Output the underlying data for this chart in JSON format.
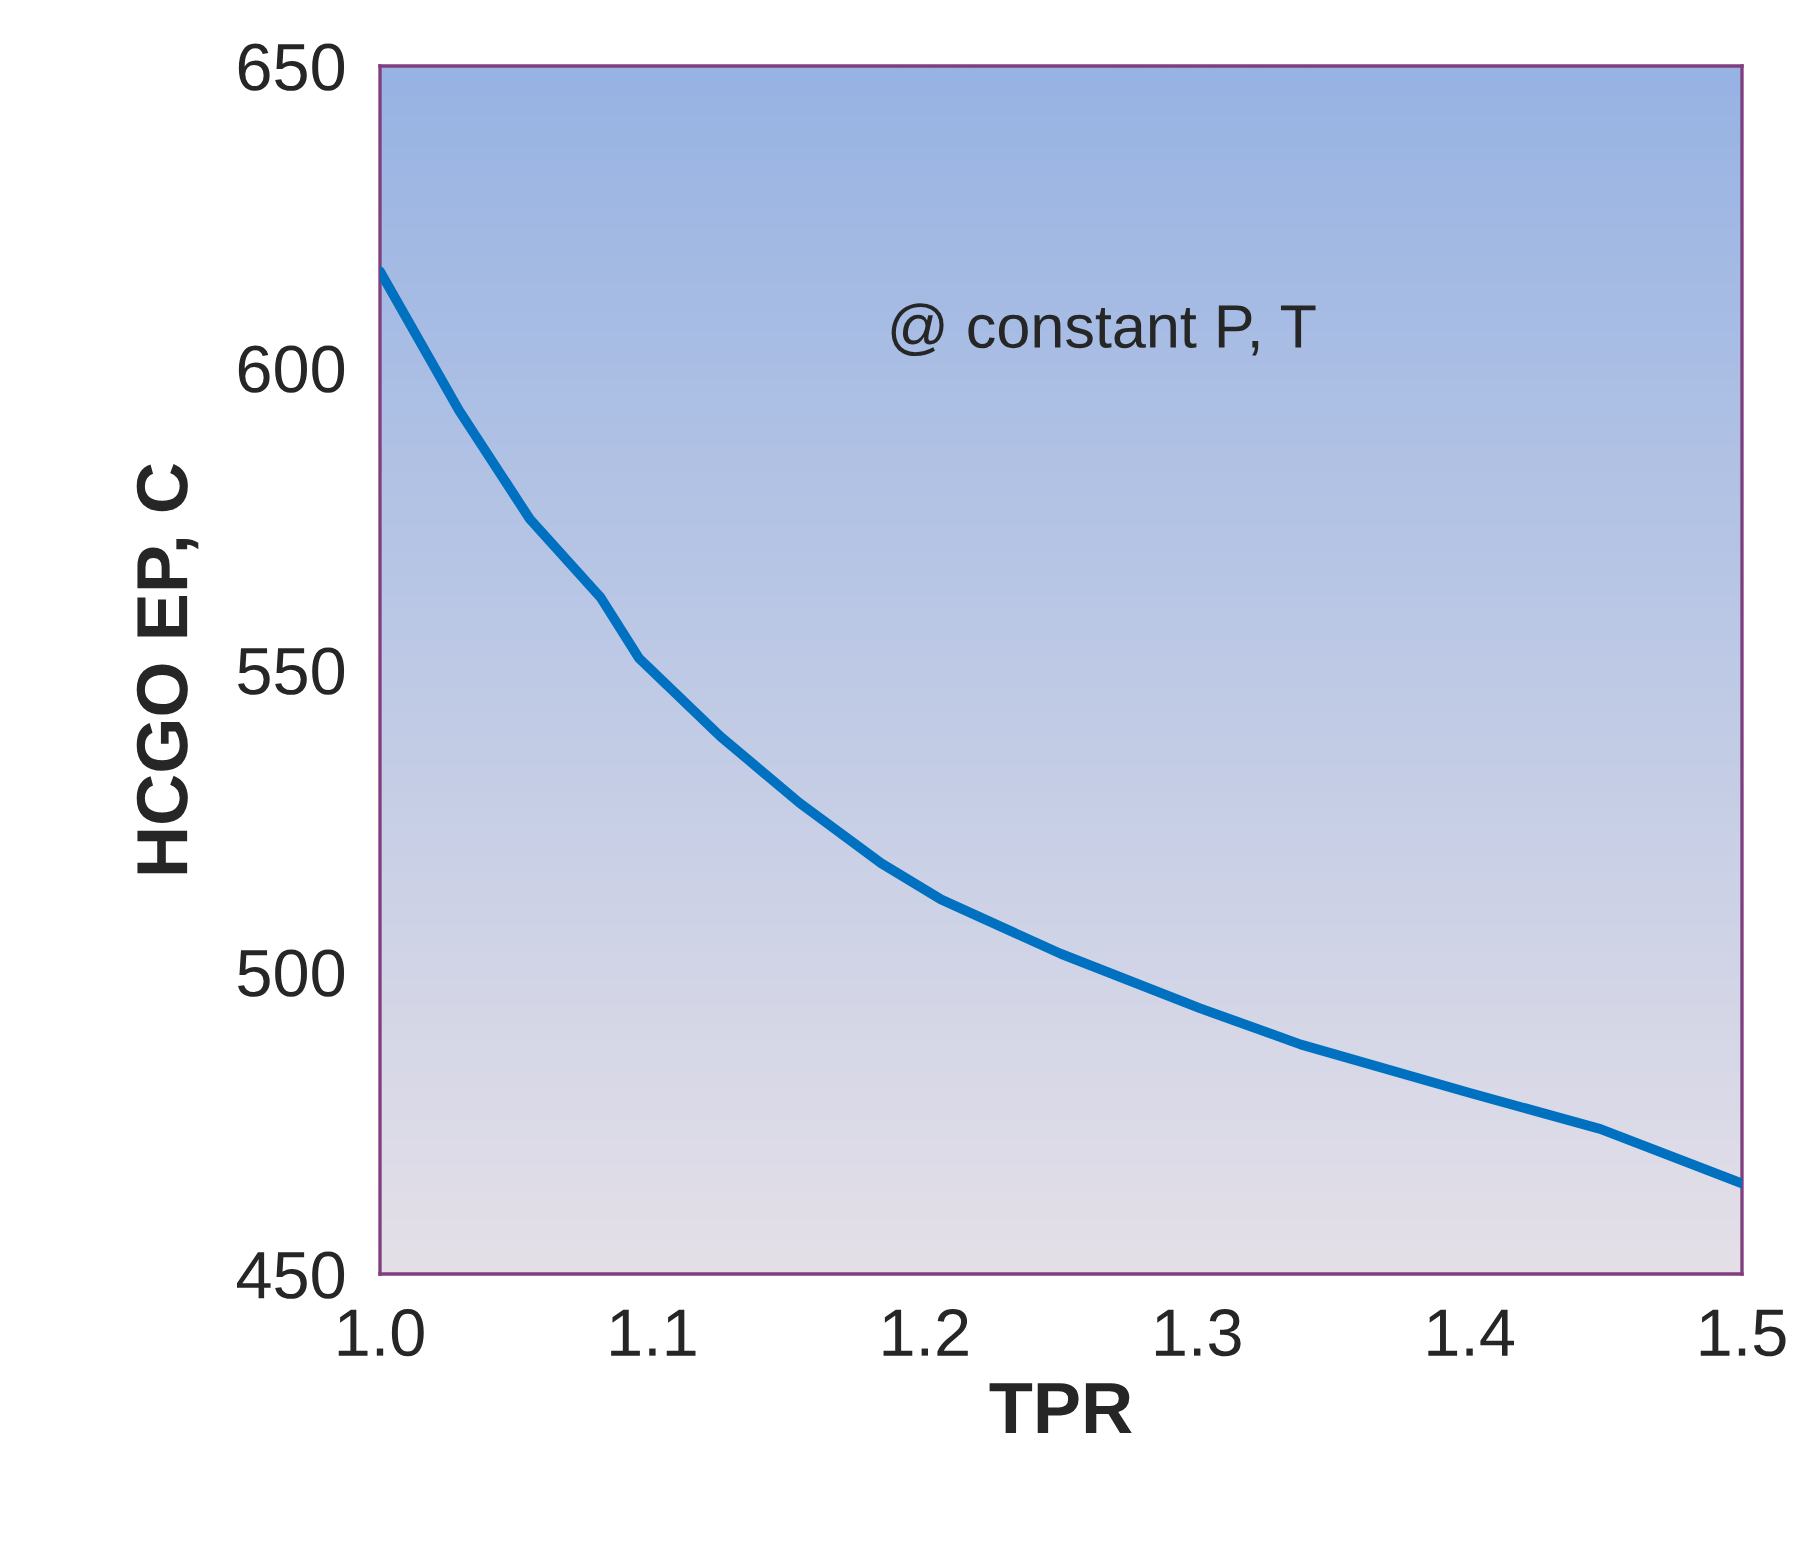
{
  "chart_data": {
    "type": "line",
    "xlabel": "TPR",
    "ylabel": "HCGO EP, C",
    "x": [
      1.0,
      1.029,
      1.055,
      1.081,
      1.095,
      1.125,
      1.154,
      1.184,
      1.206,
      1.25,
      1.301,
      1.338,
      1.4,
      1.448,
      1.5
    ],
    "series": [
      {
        "color": "#0070c0",
        "values": [
          616,
          593,
          575,
          562,
          552,
          539,
          528,
          518,
          512,
          503,
          494,
          488,
          480,
          474,
          465
        ]
      }
    ],
    "xlim": [
      1.0,
      1.5
    ],
    "xticks": [
      {
        "value": 1.0,
        "label": "1.0"
      },
      {
        "value": 1.1,
        "label": "1.1"
      },
      {
        "value": 1.2,
        "label": "1.2"
      },
      {
        "value": 1.3,
        "label": "1.3"
      },
      {
        "value": 1.4,
        "label": "1.4"
      },
      {
        "value": 1.5,
        "label": "1.5"
      }
    ],
    "ylim": [
      450,
      650
    ],
    "yticks": [
      450,
      500,
      550,
      600,
      650
    ],
    "annotations": [
      "@ constant P, T"
    ],
    "grid": false,
    "marker": "none",
    "line_style": "solid",
    "legend": false
  }
}
